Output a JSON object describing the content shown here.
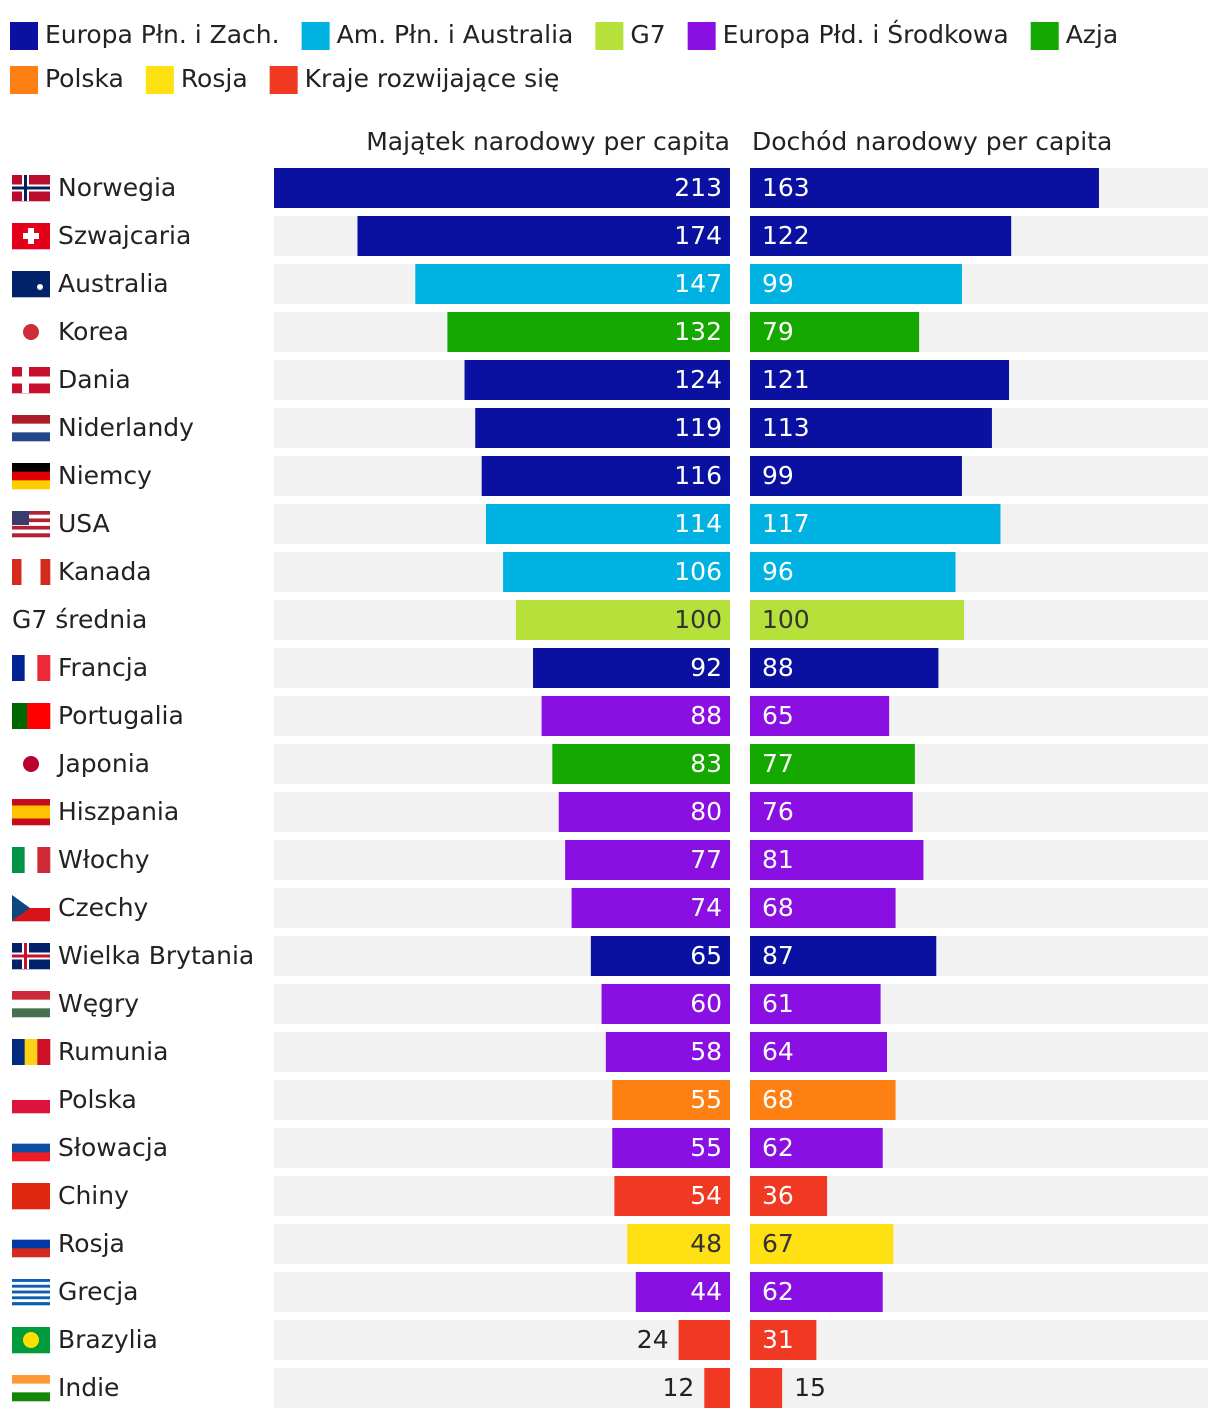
{
  "chart_data": {
    "type": "butterfly-bar",
    "legend": [
      {
        "name": "Europa Płn. i Zach.",
        "color": "#0a10a0"
      },
      {
        "name": "Am. Płn. i Australia",
        "color": "#00b2e2"
      },
      {
        "name": "G7",
        "color": "#b6e03a"
      },
      {
        "name": "Europa Płd. i Środkowa",
        "color": "#8a0fe2"
      },
      {
        "name": "Azja",
        "color": "#14a800"
      },
      {
        "name": "Polska",
        "color": "#ff8012"
      },
      {
        "name": "Rosja",
        "color": "#ffe012"
      },
      {
        "name": "Kraje rozwijające się",
        "color": "#f03822"
      }
    ],
    "categories": [
      "Norwegia",
      "Szwajcaria",
      "Australia",
      "Korea",
      "Dania",
      "Niderlandy",
      "Niemcy",
      "USA",
      "Kanada",
      "G7 średnia",
      "Francja",
      "Portugalia",
      "Japonia",
      "Hiszpania",
      "Włochy",
      "Czechy",
      "Wielka Brytania",
      "Węgry",
      "Rumunia",
      "Polska",
      "Słowacja",
      "Chiny",
      "Rosja",
      "Grecja",
      "Brazylia",
      "Indie"
    ],
    "bar_colors": [
      "#0a10a0",
      "#0a10a0",
      "#00b2e2",
      "#14a800",
      "#0a10a0",
      "#0a10a0",
      "#0a10a0",
      "#00b2e2",
      "#00b2e2",
      "#b6e03a",
      "#0a10a0",
      "#8a0fe2",
      "#14a800",
      "#8a0fe2",
      "#8a0fe2",
      "#8a0fe2",
      "#0a10a0",
      "#8a0fe2",
      "#8a0fe2",
      "#ff8012",
      "#8a0fe2",
      "#f03822",
      "#ffe012",
      "#8a0fe2",
      "#f03822",
      "#f03822"
    ],
    "series": [
      {
        "name": "Majątek narodowy per capita",
        "values": [
          213,
          174,
          147,
          132,
          124,
          119,
          116,
          114,
          106,
          100,
          92,
          88,
          83,
          80,
          77,
          74,
          65,
          60,
          58,
          55,
          55,
          54,
          48,
          44,
          24,
          12
        ]
      },
      {
        "name": "Dochód narodowy per capita",
        "values": [
          163,
          122,
          99,
          79,
          121,
          113,
          99,
          117,
          96,
          100,
          88,
          65,
          77,
          76,
          81,
          68,
          87,
          61,
          64,
          68,
          62,
          36,
          67,
          62,
          31,
          15
        ]
      }
    ],
    "xlim": [
      0,
      213
    ]
  }
}
